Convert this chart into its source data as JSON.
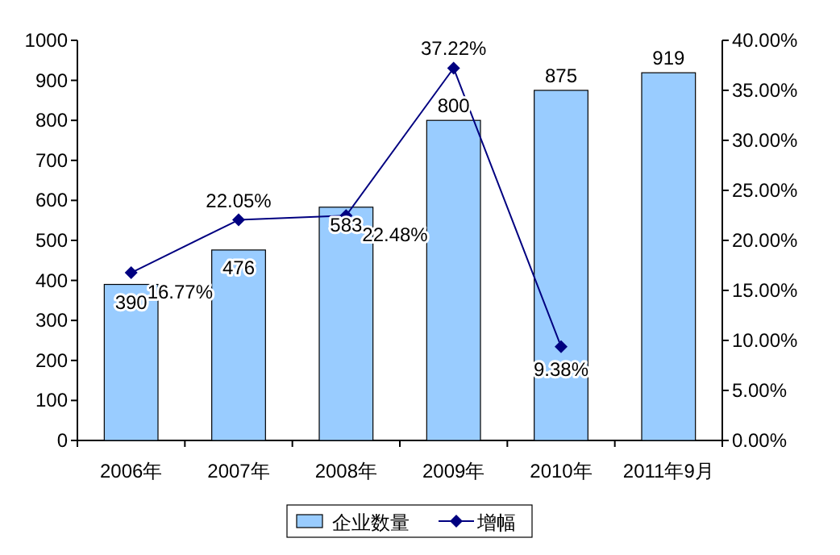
{
  "chart_data": {
    "type": "bar",
    "categories": [
      "2006年",
      "2007年",
      "2008年",
      "2009年",
      "2010年",
      "2011年9月"
    ],
    "series": [
      {
        "name": "企业数量",
        "color": "#99ccff",
        "values": [
          390,
          476,
          583,
          800,
          875,
          919
        ],
        "value_labels": [
          "390",
          "476",
          "583",
          "800",
          "875",
          "919"
        ]
      },
      {
        "name": "增幅",
        "type": "line",
        "axis": "y2",
        "color": "#000080",
        "values": [
          16.77,
          22.05,
          22.48,
          37.22,
          9.38,
          null
        ],
        "value_labels": [
          "16.77%",
          "22.05%",
          "22.48%",
          "37.22%",
          "9.38%",
          null
        ]
      }
    ],
    "ylim": [
      0,
      1000
    ],
    "yticks": [
      0,
      100,
      200,
      300,
      400,
      500,
      600,
      700,
      800,
      900,
      1000
    ],
    "y2lim": [
      0,
      40
    ],
    "y2ticks": [
      {
        "value": 0,
        "label": "0.00%"
      },
      {
        "value": 5,
        "label": "5.00%"
      },
      {
        "value": 10,
        "label": "10.00%"
      },
      {
        "value": 15,
        "label": "15.00%"
      },
      {
        "value": 20,
        "label": "20.00%"
      },
      {
        "value": 25,
        "label": "25.00%"
      },
      {
        "value": 30,
        "label": "30.00%"
      },
      {
        "value": 35,
        "label": "35.00%"
      },
      {
        "value": 40,
        "label": "40.00%"
      }
    ],
    "marker": "diamond",
    "legend": "bottom",
    "grid": false
  }
}
